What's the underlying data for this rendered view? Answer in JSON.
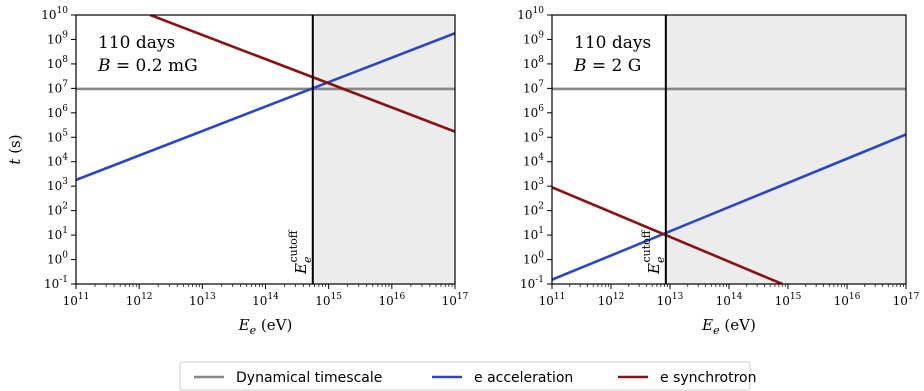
{
  "chart_data": [
    {
      "type": "line",
      "annotation": [
        "110 days",
        "B = 0.2 mG"
      ],
      "cutoff_label": "E_e^cutoff",
      "cutoff_energy_eV": 560000000000000.0,
      "xlabel": "E_e (eV)",
      "ylabel": "t (s)",
      "xscale": "log",
      "yscale": "log",
      "xlim": [
        100000000000.0,
        1e+17
      ],
      "ylim": [
        0.1,
        10000000000.0
      ],
      "x_tick_exponents": [
        11,
        12,
        13,
        14,
        15,
        16,
        17
      ],
      "y_tick_exponents": [
        -1,
        0,
        1,
        2,
        3,
        4,
        5,
        6,
        7,
        8,
        9,
        10
      ],
      "shaded_region_x": [
        560000000000000.0,
        1e+17
      ],
      "series": [
        {
          "name": "Dynamical timescale",
          "x": [
            100000000000.0,
            1e+17
          ],
          "y": [
            9500000.0,
            9500000.0
          ]
        },
        {
          "name": "e acceleration",
          "x": [
            100000000000.0,
            1e+17
          ],
          "y": [
            1800.0,
            1800000000.0
          ]
        },
        {
          "name": "e synchrotron",
          "x": [
            1500000000000.0,
            1e+17
          ],
          "y": [
            10000000000.0,
            170000.0
          ]
        }
      ]
    },
    {
      "type": "line",
      "annotation": [
        "110 days",
        "B = 2 G"
      ],
      "cutoff_label": "E_e^cutoff",
      "cutoff_energy_eV": 8500000000000.0,
      "xlabel": "E_e (eV)",
      "ylabel": "",
      "xscale": "log",
      "yscale": "log",
      "xlim": [
        100000000000.0,
        1e+17
      ],
      "ylim": [
        0.1,
        10000000000.0
      ],
      "x_tick_exponents": [
        11,
        12,
        13,
        14,
        15,
        16,
        17
      ],
      "y_tick_exponents": [
        -1,
        0,
        1,
        2,
        3,
        4,
        5,
        6,
        7,
        8,
        9,
        10
      ],
      "shaded_region_x": [
        8500000000000.0,
        1e+17
      ],
      "series": [
        {
          "name": "Dynamical timescale",
          "x": [
            100000000000.0,
            1e+17
          ],
          "y": [
            9500000.0,
            9500000.0
          ]
        },
        {
          "name": "e acceleration",
          "x": [
            100000000000.0,
            1e+17
          ],
          "y": [
            0.15,
            130000.0
          ]
        },
        {
          "name": "e synchrotron",
          "x": [
            100000000000.0,
            800000000000000.0
          ],
          "y": [
            900.0,
            0.1
          ]
        }
      ]
    }
  ],
  "legend": {
    "placement": "bottom-center",
    "entries": [
      {
        "label": "Dynamical timescale",
        "color": "#888888"
      },
      {
        "label": "e acceleration",
        "color": "#2a46c8"
      },
      {
        "label": "e synchrotron",
        "color": "#8b1212"
      }
    ]
  },
  "colors": {
    "dynamical": "#888888",
    "acceleration": "#2a46c8",
    "synchrotron": "#8b1212",
    "shade": "#ececec"
  }
}
